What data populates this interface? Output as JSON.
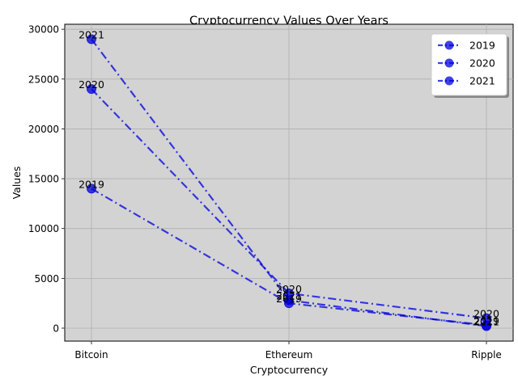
{
  "chart_data": {
    "type": "line",
    "title": "Cryptocurrency Values Over Years",
    "xlabel": "Cryptocurrency",
    "ylabel": "Values",
    "categories": [
      "Bitcoin",
      "Ethereum",
      "Ripple"
    ],
    "ylim": [
      -1300,
      30500
    ],
    "yticks": [
      0,
      5000,
      10000,
      15000,
      20000,
      25000,
      30000
    ],
    "grid": true,
    "legend_position": "top-right",
    "line_color": "#0000dd",
    "plot_background": "#d3d3d3",
    "series": [
      {
        "name": "2019",
        "values": [
          14000,
          2500,
          300
        ]
      },
      {
        "name": "2020",
        "values": [
          24000,
          3500,
          1000
        ]
      },
      {
        "name": "2021",
        "values": [
          29000,
          2800,
          200
        ]
      }
    ],
    "point_labels": [
      "2019",
      "2020",
      "2021"
    ]
  }
}
